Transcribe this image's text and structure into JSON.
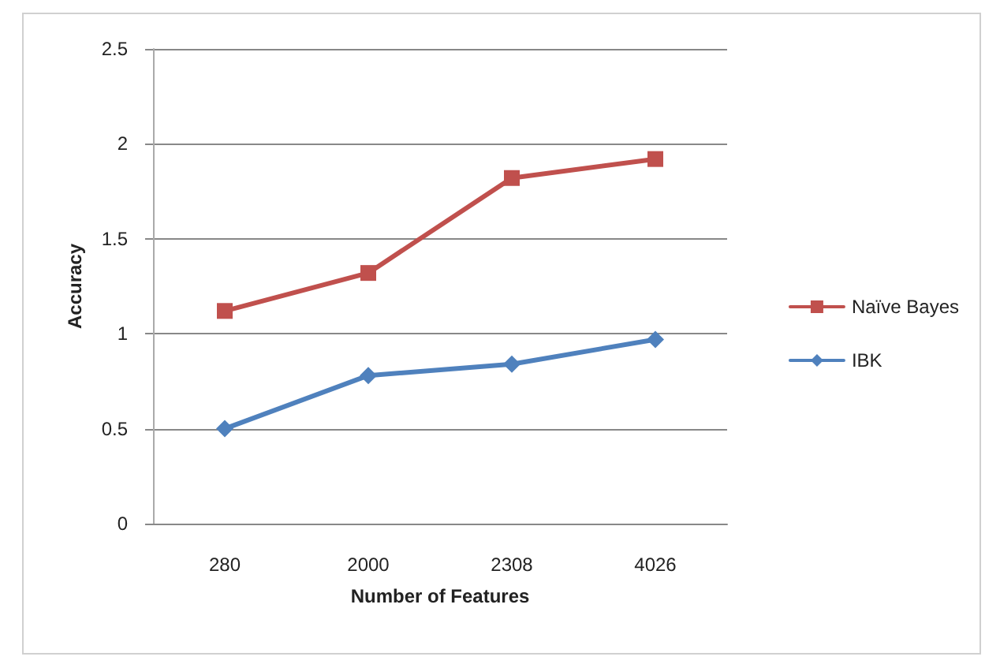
{
  "chart_data": {
    "type": "line",
    "xlabel": "Number of Features",
    "ylabel": "Accuracy",
    "categories": [
      "280",
      "2000",
      "2308",
      "4026"
    ],
    "series": [
      {
        "name": "Naïve Bayes",
        "color": "#c0504d",
        "values": [
          1.12,
          1.32,
          1.82,
          1.92
        ],
        "marker": "square"
      },
      {
        "name": "IBK",
        "color": "#4f81bd",
        "values": [
          0.5,
          0.78,
          0.84,
          0.97
        ],
        "marker": "diamond"
      }
    ],
    "ylim": [
      0,
      2.5
    ],
    "yticks": [
      0,
      0.5,
      1,
      1.5,
      2,
      2.5
    ],
    "grid": "y",
    "legend": "right",
    "line_style": "solid"
  }
}
